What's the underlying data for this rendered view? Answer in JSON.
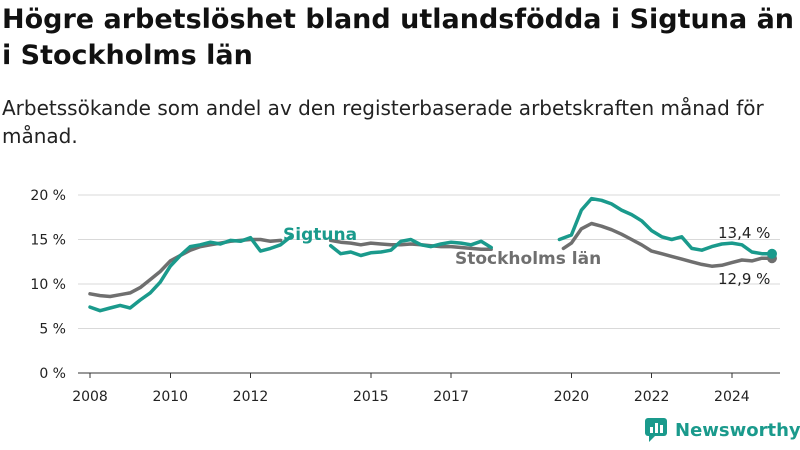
{
  "title": "Högre arbetslöshet bland utlandsfödda i Sigtuna än i Stockholms län",
  "subtitle": "Arbetssökande som andel av den registerbaserade arbetskraften månad för månad.",
  "brand": "Newsworthy",
  "colors": {
    "sigtuna": "#1a9a8c",
    "stockholm": "#6f6f6f",
    "brand": "#1a9a8c"
  },
  "chart_data": {
    "type": "line",
    "title": "Högre arbetslöshet bland utlandsfödda i Sigtuna än i Stockholms län",
    "subtitle": "Arbetssökande som andel av den registerbaserade arbetskraften månad för månad.",
    "xlabel": "",
    "ylabel": "",
    "ylim": [
      0,
      20
    ],
    "xlim": [
      2007.7,
      2025.2
    ],
    "y_ticks": [
      0,
      5,
      10,
      15,
      20
    ],
    "y_tick_labels": [
      "0 %",
      "5 %",
      "10 %",
      "15 %",
      "20 %"
    ],
    "x_ticks": [
      2008,
      2010,
      2012,
      2015,
      2017,
      2020,
      2022,
      2024
    ],
    "x_tick_labels": [
      "2008",
      "2010",
      "2012",
      "2015",
      "2017",
      "2020",
      "2022",
      "2024"
    ],
    "grid": true,
    "series": [
      {
        "name": "Stockholms län",
        "end_label": "12,9 %",
        "points": [
          [
            2008.0,
            8.9
          ],
          [
            2008.25,
            8.7
          ],
          [
            2008.5,
            8.6
          ],
          [
            2008.75,
            8.8
          ],
          [
            2009.0,
            9.0
          ],
          [
            2009.25,
            9.6
          ],
          [
            2009.5,
            10.5
          ],
          [
            2009.75,
            11.4
          ],
          [
            2010.0,
            12.6
          ],
          [
            2010.25,
            13.2
          ],
          [
            2010.5,
            13.8
          ],
          [
            2010.75,
            14.2
          ],
          [
            2011.0,
            14.4
          ],
          [
            2011.25,
            14.6
          ],
          [
            2011.5,
            14.8
          ],
          [
            2011.75,
            14.9
          ],
          [
            2012.0,
            15.0
          ],
          [
            2012.25,
            15.0
          ],
          [
            2012.5,
            14.8
          ],
          [
            2012.75,
            14.9
          ],
          [
            null,
            null
          ],
          [
            2014.0,
            14.9
          ],
          [
            2014.25,
            14.7
          ],
          [
            2014.5,
            14.6
          ],
          [
            2014.75,
            14.4
          ],
          [
            2015.0,
            14.6
          ],
          [
            2015.25,
            14.5
          ],
          [
            2015.5,
            14.4
          ],
          [
            2015.75,
            14.4
          ],
          [
            2016.0,
            14.5
          ],
          [
            2016.25,
            14.4
          ],
          [
            2016.5,
            14.3
          ],
          [
            2016.75,
            14.2
          ],
          [
            2017.0,
            14.2
          ],
          [
            2017.25,
            14.1
          ],
          [
            2017.5,
            14.0
          ],
          [
            2017.75,
            13.9
          ],
          [
            2018.0,
            13.9
          ],
          [
            null,
            null
          ],
          [
            2019.8,
            14.0
          ],
          [
            2020.0,
            14.6
          ],
          [
            2020.25,
            16.2
          ],
          [
            2020.5,
            16.8
          ],
          [
            2020.75,
            16.5
          ],
          [
            2021.0,
            16.1
          ],
          [
            2021.25,
            15.6
          ],
          [
            2021.5,
            15.0
          ],
          [
            2021.75,
            14.4
          ],
          [
            2022.0,
            13.7
          ],
          [
            2022.25,
            13.4
          ],
          [
            2022.5,
            13.1
          ],
          [
            2022.75,
            12.8
          ],
          [
            2023.0,
            12.5
          ],
          [
            2023.25,
            12.2
          ],
          [
            2023.5,
            12.0
          ],
          [
            2023.75,
            12.1
          ],
          [
            2024.0,
            12.4
          ],
          [
            2024.25,
            12.7
          ],
          [
            2024.5,
            12.6
          ],
          [
            2024.75,
            12.9
          ],
          [
            2025.0,
            12.9
          ]
        ]
      },
      {
        "name": "Sigtuna",
        "end_label": "13,4 %",
        "points": [
          [
            2008.0,
            7.4
          ],
          [
            2008.25,
            7.0
          ],
          [
            2008.5,
            7.3
          ],
          [
            2008.75,
            7.6
          ],
          [
            2009.0,
            7.3
          ],
          [
            2009.25,
            8.2
          ],
          [
            2009.5,
            9.0
          ],
          [
            2009.75,
            10.2
          ],
          [
            2010.0,
            12.0
          ],
          [
            2010.25,
            13.2
          ],
          [
            2010.5,
            14.2
          ],
          [
            2010.75,
            14.4
          ],
          [
            2011.0,
            14.7
          ],
          [
            2011.25,
            14.5
          ],
          [
            2011.5,
            14.9
          ],
          [
            2011.75,
            14.8
          ],
          [
            2012.0,
            15.2
          ],
          [
            2012.25,
            13.7
          ],
          [
            2012.5,
            14.0
          ],
          [
            2012.75,
            14.4
          ],
          [
            2013.0,
            15.3
          ],
          [
            null,
            null
          ],
          [
            2014.0,
            14.3
          ],
          [
            2014.25,
            13.4
          ],
          [
            2014.5,
            13.6
          ],
          [
            2014.75,
            13.2
          ],
          [
            2015.0,
            13.5
          ],
          [
            2015.25,
            13.6
          ],
          [
            2015.5,
            13.8
          ],
          [
            2015.75,
            14.8
          ],
          [
            2016.0,
            15.0
          ],
          [
            2016.25,
            14.4
          ],
          [
            2016.5,
            14.2
          ],
          [
            2016.75,
            14.5
          ],
          [
            2017.0,
            14.7
          ],
          [
            2017.25,
            14.6
          ],
          [
            2017.5,
            14.4
          ],
          [
            2017.75,
            14.8
          ],
          [
            2018.0,
            14.1
          ],
          [
            null,
            null
          ],
          [
            2019.7,
            15.0
          ],
          [
            2020.0,
            15.5
          ],
          [
            2020.25,
            18.3
          ],
          [
            2020.5,
            19.6
          ],
          [
            2020.75,
            19.4
          ],
          [
            2021.0,
            19.0
          ],
          [
            2021.25,
            18.3
          ],
          [
            2021.5,
            17.8
          ],
          [
            2021.75,
            17.1
          ],
          [
            2022.0,
            16.0
          ],
          [
            2022.25,
            15.3
          ],
          [
            2022.5,
            15.0
          ],
          [
            2022.75,
            15.3
          ],
          [
            2023.0,
            14.0
          ],
          [
            2023.25,
            13.8
          ],
          [
            2023.5,
            14.2
          ],
          [
            2023.75,
            14.5
          ],
          [
            2024.0,
            14.6
          ],
          [
            2024.25,
            14.4
          ],
          [
            2024.5,
            13.6
          ],
          [
            2024.75,
            13.4
          ],
          [
            2025.0,
            13.4
          ]
        ]
      }
    ]
  }
}
